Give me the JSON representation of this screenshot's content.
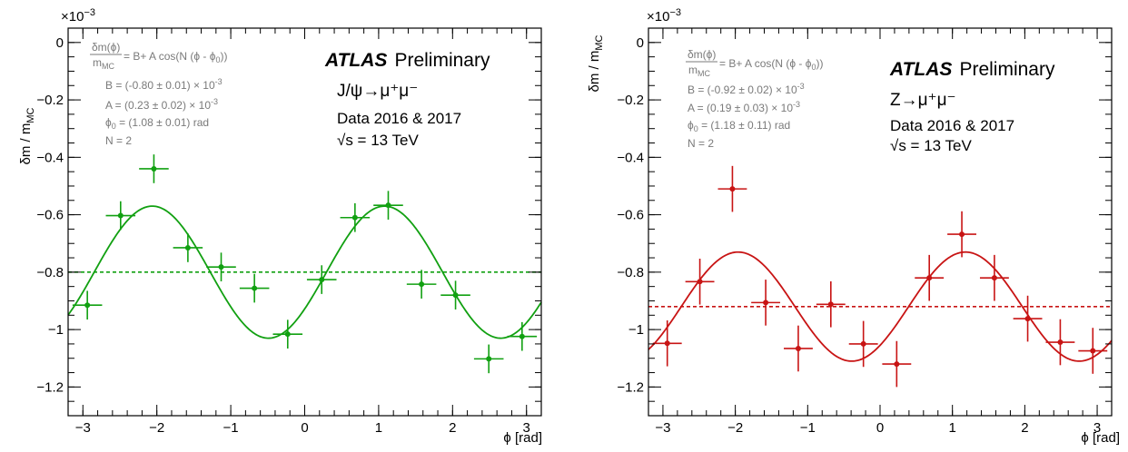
{
  "chart_data": [
    {
      "type": "scatter",
      "process": "J/ψ→μ⁺μ⁻",
      "experiment": "ATLAS",
      "label": "Preliminary",
      "dataset": "Data 2016 & 2017",
      "energy": "√s = 13 TeV",
      "xlabel": "ϕ [rad]",
      "ylabel": "δm / m",
      "ylabel_sub": "MC",
      "y_multiplier": "×10",
      "y_multiplier_exp": "−3",
      "xlim": [
        -3.2,
        3.2
      ],
      "ylim": [
        -1.3,
        0.05
      ],
      "xticks": [
        -3,
        -2,
        -1,
        0,
        1,
        2,
        3
      ],
      "xtick_labels": [
        "−3",
        "−2",
        "−1",
        "0",
        "1",
        "2",
        "3"
      ],
      "yticks": [
        0,
        -0.2,
        -0.4,
        -0.6,
        -0.8,
        -1,
        -1.2
      ],
      "ytick_labels": [
        "0",
        "−0.2",
        "−0.4",
        "−0.6",
        "−0.8",
        "−1",
        "−1.2"
      ],
      "color": "#11a011",
      "fit_box": {
        "numerator": "δm(ϕ)",
        "denominator": "m",
        "denominator_sub": "MC",
        "formula_a": " = B+ A cos(N (ϕ - ϕ",
        "formula_sub": "0",
        "formula_b": "))",
        "line_B": "B = (-0.80 ± 0.01) × 10",
        "line_B_exp": "-3",
        "line_A": "A = (0.23 ± 0.02) × 10",
        "line_A_exp": "-3",
        "line_phi_a": "ϕ",
        "line_phi_sub": "0",
        "line_phi_b": " = (1.08 ± 0.01) rad",
        "line_N": "N = 2"
      },
      "fit": {
        "B": -0.8,
        "A": 0.23,
        "phi0": 1.08,
        "N": 2
      },
      "points": [
        {
          "x": -2.94,
          "y": -0.915,
          "xerr": 0.2,
          "yerr": 0.05
        },
        {
          "x": -2.49,
          "y": -0.603,
          "xerr": 0.2,
          "yerr": 0.05
        },
        {
          "x": -2.04,
          "y": -0.44,
          "xerr": 0.2,
          "yerr": 0.05
        },
        {
          "x": -1.58,
          "y": -0.715,
          "xerr": 0.2,
          "yerr": 0.05
        },
        {
          "x": -1.13,
          "y": -0.782,
          "xerr": 0.2,
          "yerr": 0.05
        },
        {
          "x": -0.68,
          "y": -0.856,
          "xerr": 0.2,
          "yerr": 0.05
        },
        {
          "x": -0.23,
          "y": -1.016,
          "xerr": 0.2,
          "yerr": 0.05
        },
        {
          "x": 0.23,
          "y": -0.826,
          "xerr": 0.2,
          "yerr": 0.05
        },
        {
          "x": 0.68,
          "y": -0.61,
          "xerr": 0.2,
          "yerr": 0.05
        },
        {
          "x": 1.13,
          "y": -0.567,
          "xerr": 0.2,
          "yerr": 0.05
        },
        {
          "x": 1.58,
          "y": -0.842,
          "xerr": 0.2,
          "yerr": 0.05
        },
        {
          "x": 2.04,
          "y": -0.88,
          "xerr": 0.2,
          "yerr": 0.05
        },
        {
          "x": 2.49,
          "y": -1.102,
          "xerr": 0.2,
          "yerr": 0.05
        },
        {
          "x": 2.94,
          "y": -1.024,
          "xerr": 0.2,
          "yerr": 0.05
        }
      ]
    },
    {
      "type": "scatter",
      "process": "Z→μ⁺μ⁻",
      "experiment": "ATLAS",
      "label": "Preliminary",
      "dataset": "Data 2016 & 2017",
      "energy": "√s = 13 TeV",
      "xlabel": "ϕ [rad]",
      "ylabel": "δm / m",
      "ylabel_sub": "MC",
      "y_multiplier": "×10",
      "y_multiplier_exp": "−3",
      "xlim": [
        -3.2,
        3.2
      ],
      "ylim": [
        -1.3,
        0.05
      ],
      "xticks": [
        -3,
        -2,
        -1,
        0,
        1,
        2,
        3
      ],
      "xtick_labels": [
        "−3",
        "−2",
        "−1",
        "0",
        "1",
        "2",
        "3"
      ],
      "yticks": [
        0,
        -0.2,
        -0.4,
        -0.6,
        -0.8,
        -1,
        -1.2
      ],
      "ytick_labels": [
        "0",
        "−0.2",
        "−0.4",
        "−0.6",
        "−0.8",
        "−1",
        "−1.2"
      ],
      "color": "#c81414",
      "fit_box": {
        "numerator": "δm(ϕ)",
        "denominator": "m",
        "denominator_sub": "MC",
        "formula_a": " = B+ A cos(N (ϕ - ϕ",
        "formula_sub": "0",
        "formula_b": "))",
        "line_B": "B = (-0.92 ± 0.02) × 10",
        "line_B_exp": "-3",
        "line_A": "A = (0.19 ± 0.03) × 10",
        "line_A_exp": "-3",
        "line_phi_a": "ϕ",
        "line_phi_sub": "0",
        "line_phi_b": " = (1.18 ± 0.11) rad",
        "line_N": "N = 2"
      },
      "fit": {
        "B": -0.92,
        "A": 0.19,
        "phi0": 1.18,
        "N": 2
      },
      "points": [
        {
          "x": -2.94,
          "y": -1.048,
          "xerr": 0.2,
          "yerr": 0.08
        },
        {
          "x": -2.49,
          "y": -0.833,
          "xerr": 0.2,
          "yerr": 0.08
        },
        {
          "x": -2.04,
          "y": -0.51,
          "xerr": 0.2,
          "yerr": 0.08
        },
        {
          "x": -1.58,
          "y": -0.906,
          "xerr": 0.2,
          "yerr": 0.08
        },
        {
          "x": -1.13,
          "y": -1.066,
          "xerr": 0.2,
          "yerr": 0.08
        },
        {
          "x": -0.68,
          "y": -0.912,
          "xerr": 0.2,
          "yerr": 0.08
        },
        {
          "x": -0.23,
          "y": -1.05,
          "xerr": 0.2,
          "yerr": 0.08
        },
        {
          "x": 0.23,
          "y": -1.12,
          "xerr": 0.2,
          "yerr": 0.08
        },
        {
          "x": 0.68,
          "y": -0.82,
          "xerr": 0.2,
          "yerr": 0.08
        },
        {
          "x": 1.13,
          "y": -0.668,
          "xerr": 0.2,
          "yerr": 0.08
        },
        {
          "x": 1.58,
          "y": -0.82,
          "xerr": 0.2,
          "yerr": 0.08
        },
        {
          "x": 2.04,
          "y": -0.962,
          "xerr": 0.2,
          "yerr": 0.08
        },
        {
          "x": 2.49,
          "y": -1.044,
          "xerr": 0.2,
          "yerr": 0.08
        },
        {
          "x": 2.94,
          "y": -1.074,
          "xerr": 0.2,
          "yerr": 0.08
        }
      ]
    }
  ]
}
